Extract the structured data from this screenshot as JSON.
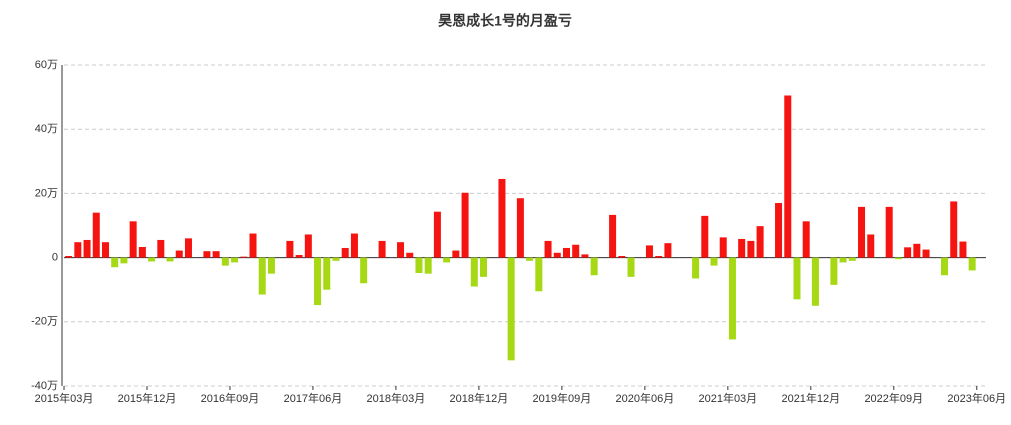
{
  "chart_data": {
    "type": "bar",
    "title": "昊恩成长1号的月盈亏",
    "categories": [
      "2015年03月",
      null,
      null,
      null,
      null,
      null,
      null,
      null,
      null,
      "2015年12月",
      null,
      null,
      null,
      null,
      null,
      null,
      null,
      null,
      "2016年09月",
      null,
      null,
      null,
      null,
      null,
      null,
      null,
      null,
      "2017年06月",
      null,
      null,
      null,
      null,
      null,
      null,
      null,
      null,
      "2018年03月",
      null,
      null,
      null,
      null,
      null,
      null,
      null,
      null,
      "2018年12月",
      null,
      null,
      null,
      null,
      null,
      null,
      null,
      null,
      "2019年09月",
      null,
      null,
      null,
      null,
      null,
      null,
      null,
      null,
      "2020年06月",
      null,
      null,
      null,
      null,
      null,
      null,
      null,
      null,
      "2021年03月",
      null,
      null,
      null,
      null,
      null,
      null,
      null,
      null,
      "2021年12月",
      null,
      null,
      null,
      null,
      null,
      null,
      null,
      null,
      "2022年09月",
      null,
      null,
      null,
      null,
      null,
      null,
      null,
      null,
      "2023年06月"
    ],
    "values": [
      5000,
      48000,
      55000,
      140000,
      48000,
      -30000,
      -18000,
      113000,
      33000,
      -12000,
      55000,
      -12000,
      22000,
      60000,
      0,
      20000,
      20000,
      -25000,
      -15000,
      3000,
      75000,
      -115000,
      -50000,
      0,
      52000,
      8000,
      72000,
      -148000,
      -100000,
      -10000,
      30000,
      75000,
      -80000,
      0,
      52000,
      0,
      48000,
      15000,
      -48000,
      -50000,
      143000,
      -15000,
      22000,
      202000,
      -90000,
      -60000,
      0,
      245000,
      -320000,
      185000,
      -10000,
      -105000,
      52000,
      15000,
      30000,
      40000,
      10000,
      -55000,
      0,
      133000,
      5000,
      -60000,
      0,
      38000,
      5000,
      45000,
      0,
      0,
      -65000,
      130000,
      -25000,
      63000,
      -255000,
      58000,
      52000,
      98000,
      0,
      170000,
      505000,
      -130000,
      113000,
      -150000,
      0,
      -85000,
      -15000,
      -10000,
      158000,
      72000,
      0,
      158000,
      -5000,
      32000,
      43000,
      25000,
      0,
      -55000,
      175000,
      50000,
      -40000,
      0
    ],
    "positive_color": "#f5140f",
    "negative_color": "#a6d914",
    "ylim": [
      -400000,
      600000
    ],
    "yticks": [
      {
        "value": -400000,
        "label": "-40万"
      },
      {
        "value": -200000,
        "label": "-20万"
      },
      0,
      {
        "value": 200000,
        "label": "20万"
      },
      {
        "value": 400000,
        "label": "40万"
      },
      {
        "value": 600000,
        "label": "60万"
      }
    ],
    "grid": true
  }
}
